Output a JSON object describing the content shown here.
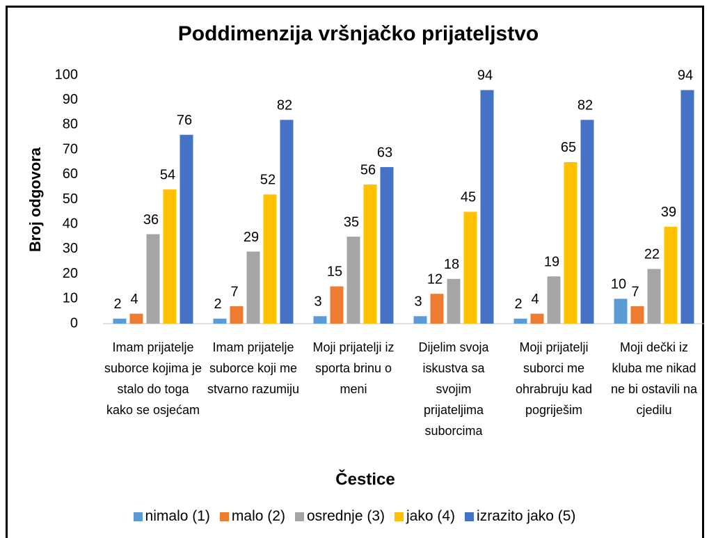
{
  "chart_data": {
    "type": "bar",
    "title": "Poddimenzija vršnjačko prijateljstvo",
    "ylabel": "Broj odgovora",
    "xlabel": "Čestice",
    "categories": [
      "Imam prijatelje suborce kojima je stalo do toga kako se osjećam",
      "Imam prijatelje suborce koji me stvarno razumiju",
      "Moji prijatelji iz sporta brinu o meni",
      "Dijelim svoja iskustva sa svojim prijateljima suborcima",
      "Moji prijatelji suborci me ohrabruju kad pogriješim",
      "Moji dečki iz kluba me nikad ne bi ostavili na cjedilu"
    ],
    "series": [
      {
        "name": "nimalo (1)",
        "color": "#5b9bd5",
        "values": [
          2,
          2,
          3,
          3,
          2,
          10
        ]
      },
      {
        "name": "malo (2)",
        "color": "#ed7d31",
        "values": [
          4,
          7,
          15,
          12,
          4,
          7
        ]
      },
      {
        "name": "osrednje (3)",
        "color": "#a5a5a5",
        "values": [
          36,
          29,
          35,
          18,
          19,
          22
        ]
      },
      {
        "name": "jako (4)",
        "color": "#ffc000",
        "values": [
          54,
          52,
          56,
          45,
          65,
          39
        ]
      },
      {
        "name": "izrazito jako (5)",
        "color": "#4472c4",
        "values": [
          76,
          82,
          63,
          94,
          82,
          94
        ]
      }
    ],
    "ylim": [
      0,
      100
    ],
    "yticks": [
      0,
      10,
      20,
      30,
      40,
      50,
      60,
      70,
      80,
      90,
      100
    ],
    "grid": false,
    "legend": "bottom"
  }
}
